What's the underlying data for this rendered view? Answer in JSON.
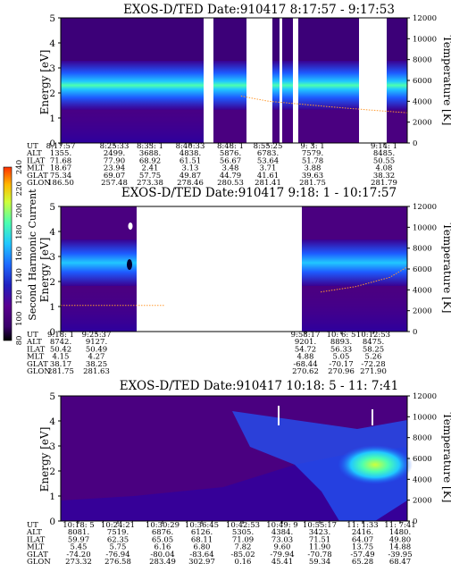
{
  "chart_data": {
    "type": "heatmap",
    "colorbar": {
      "label": "Second Harmonic Current",
      "ticks": [
        "80",
        "100",
        "120",
        "140",
        "160",
        "180",
        "200",
        "220",
        "240"
      ],
      "range": [
        80,
        240
      ],
      "colors": [
        "#000000",
        "#3a006a",
        "#5a0090",
        "#2020c0",
        "#1e6bff",
        "#21c8ff",
        "#4dffb0",
        "#cfff3a",
        "#ffb800",
        "#ff3000"
      ]
    },
    "panels": [
      {
        "title": "EXOS-D/TED   Date:910417   8:17:57 - 9:17:53",
        "ylabel": "Energy [eV]",
        "y2label": "Temperature [K]",
        "ylim": [
          0,
          5
        ],
        "y2lim": [
          0,
          12000
        ],
        "yticks": [
          "0",
          "1",
          "2",
          "3",
          "4",
          "5"
        ],
        "y2ticks": [
          "0",
          "2000",
          "4000",
          "6000",
          "8000",
          "10000",
          "12000"
        ],
        "row_labels": [
          "UT",
          "ALT",
          "ILAT",
          "MLT",
          "GLAT",
          "GLON"
        ],
        "columns": [
          [
            "8:17:57",
            "1355.",
            "71.68",
            "18.67",
            "75.34",
            "186.50"
          ],
          [
            "8:25:33",
            "2499.",
            "77.90",
            "23.94",
            "69.07",
            "257.48"
          ],
          [
            "8:33: 1",
            "3688.",
            "68.92",
            "2.41",
            "57.75",
            "273.38"
          ],
          [
            "8:40:33",
            "4838.",
            "61.51",
            "3.13",
            "49.87",
            "278.46"
          ],
          [
            "8:48: 1",
            "5876.",
            "56.67",
            "3.48",
            "44.79",
            "280.53"
          ],
          [
            "8:55:25",
            "6783.",
            "53.64",
            "3.71",
            "41.61",
            "281.41"
          ],
          [
            "9: 3: 1",
            "7579.",
            "51.78",
            "3.88",
            "39.63",
            "281.75"
          ],
          [
            "9:14: 1",
            "8485.",
            "50.55",
            "4.08",
            "38.32",
            "281.79"
          ]
        ],
        "band": {
          "center_eV": 2.6,
          "half_width_eV": 0.5
        },
        "temperature_K": {
          "x": [
            0.52,
            0.6,
            0.7,
            0.8,
            0.9,
            1.0
          ],
          "y": [
            4500,
            4000,
            3700,
            3400,
            3150,
            2900
          ]
        }
      },
      {
        "title": "EXOS-D/TED   Date:910417   9:18: 1 - 10:17:57",
        "ylabel": "Energy [eV]",
        "y2label": "Temperature [K]",
        "ylim": [
          0,
          5
        ],
        "y2lim": [
          0,
          12000
        ],
        "yticks": [
          "0",
          "1",
          "2",
          "3",
          "4",
          "5"
        ],
        "y2ticks": [
          "0",
          "2000",
          "4000",
          "6000",
          "8000",
          "10000",
          "12000"
        ],
        "row_labels": [
          "UT",
          "ALT",
          "ILAT",
          "MLT",
          "GLAT",
          "GLON"
        ],
        "columns": [
          [
            "9:18: 1",
            "8742.",
            "50.42",
            "4.15",
            "38.17",
            "281.75"
          ],
          [
            "9:25:37",
            "9127.",
            "50.49",
            "4.27",
            "38.25",
            "281.63"
          ],
          [
            "9:58:17",
            "9201.",
            "54.72",
            "4.88",
            "-68.44",
            "270.62"
          ],
          [
            "10: 6: 5",
            "8893.",
            "56.33",
            "5.05",
            "-70.17",
            "270.96"
          ],
          [
            "10:12:53",
            "8475.",
            "58.25",
            "5.26",
            "-72.28",
            "271.90"
          ]
        ],
        "band": {
          "center_eV": 2.7,
          "half_width_eV": 0.45
        },
        "temperature_K": {
          "x": [
            0,
            0.3
          ],
          "y": [
            2500,
            2500
          ],
          "x2": [
            0.75,
            0.85,
            0.95,
            1.0
          ],
          "y2": [
            3800,
            4300,
            5200,
            6200
          ]
        }
      },
      {
        "title": "EXOS-D/TED   Date:910417   10:18: 5 - 11: 7:41",
        "ylabel": "Energy [eV]",
        "y2label": "Temperature [K]",
        "ylim": [
          0,
          5
        ],
        "y2lim": [
          0,
          12000
        ],
        "yticks": [
          "0",
          "1",
          "2",
          "3",
          "4",
          "5"
        ],
        "y2ticks": [
          "0",
          "2000",
          "4000",
          "6000",
          "8000",
          "10000",
          "12000"
        ],
        "row_labels": [
          "UT",
          "ALT",
          "ILAT",
          "MLT",
          "GLAT",
          "GLON"
        ],
        "columns": [
          [
            "10:18: 5",
            "8081.",
            "59.97",
            "5.45",
            "-74.20",
            "273.32"
          ],
          [
            "10:24:21",
            "7519.",
            "62.35",
            "5.75",
            "-76.94",
            "276.58"
          ],
          [
            "10:30:29",
            "6876.",
            "65.05",
            "6.16",
            "-80.04",
            "283.49"
          ],
          [
            "10:36:45",
            "6126.",
            "68.11",
            "6.80",
            "-83.64",
            "302.97"
          ],
          [
            "10:42:53",
            "5305.",
            "71.09",
            "7.82",
            "-85.02",
            "0.16"
          ],
          [
            "10:49: 9",
            "4384.",
            "73.03",
            "9.60",
            "-79.94",
            "45.41"
          ],
          [
            "10:55:17",
            "3423.",
            "71.51",
            "11.90",
            "-70.78",
            "59.34"
          ],
          [
            "11: 1:33",
            "2416.",
            "64.07",
            "13.75",
            "-57.49",
            "65.28"
          ],
          [
            "11: 7:41",
            "1480.",
            "49.80",
            "14.88",
            "-39.95",
            "68.47"
          ]
        ]
      }
    ]
  }
}
